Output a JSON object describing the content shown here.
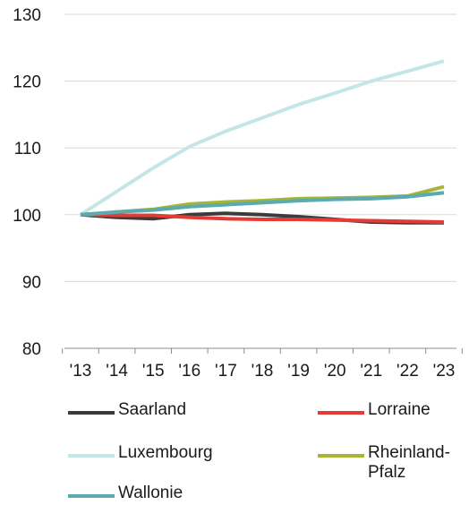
{
  "chart_data": {
    "type": "line",
    "categories": [
      "'13",
      "'14",
      "'15",
      "'16",
      "'17",
      "'18",
      "'19",
      "'20",
      "'21",
      "'22",
      "'23"
    ],
    "ylim": [
      80,
      130
    ],
    "yticks": [
      "80",
      "90",
      "100",
      "110",
      "120",
      "130"
    ],
    "grid": "horizontal",
    "legend_position": "bottom",
    "series": [
      {
        "name": "Saarland",
        "color": "#3b3b3b",
        "values": [
          100,
          99.6,
          99.4,
          100.0,
          100.2,
          100.0,
          99.7,
          99.3,
          98.9,
          98.8,
          98.8
        ]
      },
      {
        "name": "Lorraine",
        "color": "#e63a36",
        "values": [
          100,
          99.9,
          99.9,
          99.6,
          99.4,
          99.3,
          99.3,
          99.2,
          99.1,
          99.0,
          98.9
        ]
      },
      {
        "name": "Luxembourg",
        "color": "#c4e6e6",
        "values": [
          100,
          103.5,
          107.0,
          110.2,
          112.5,
          114.5,
          116.5,
          118.2,
          120.0,
          121.5,
          123.0
        ]
      },
      {
        "name": "Rheinland-\nPfalz",
        "color": "#a8b534",
        "values": [
          100,
          100.4,
          100.8,
          101.6,
          101.9,
          102.1,
          102.4,
          102.5,
          102.6,
          102.8,
          104.2
        ]
      },
      {
        "name": "Wallonie",
        "color": "#5aaab0",
        "values": [
          100,
          100.4,
          100.7,
          101.2,
          101.5,
          101.8,
          102.1,
          102.3,
          102.4,
          102.7,
          103.3
        ]
      }
    ]
  }
}
